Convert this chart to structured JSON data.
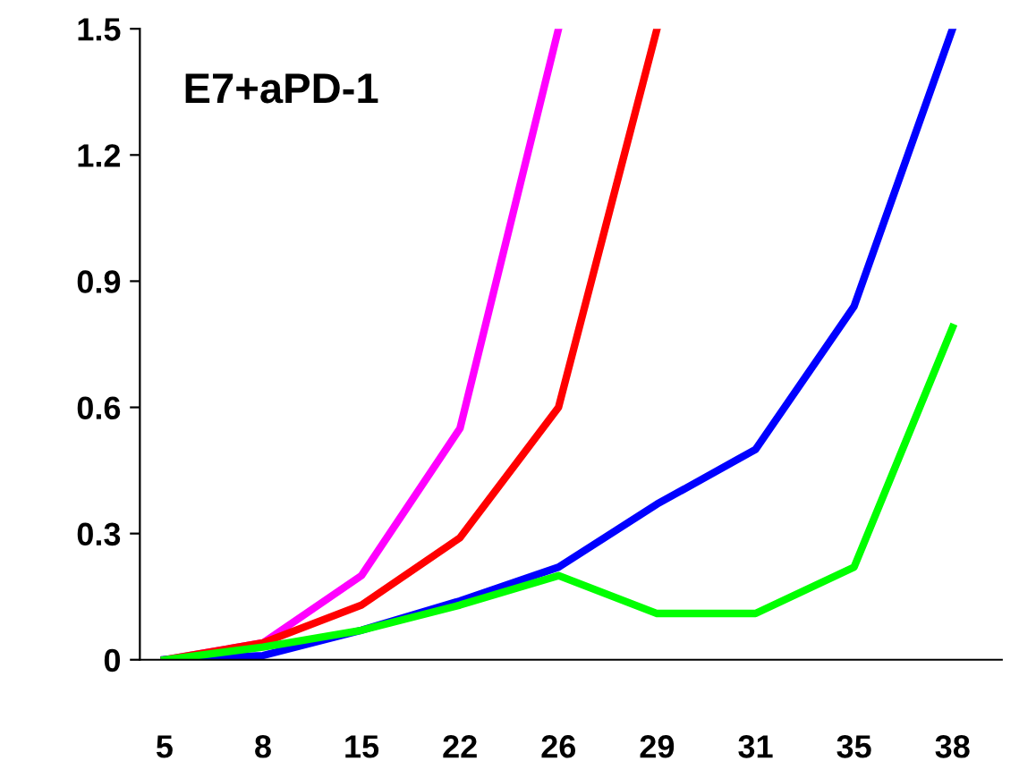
{
  "chart_data": {
    "type": "line",
    "title": "E7+aPD-1",
    "categories": [
      "5",
      "8",
      "15",
      "22",
      "26",
      "29",
      "31",
      "35",
      "38"
    ],
    "series": [
      {
        "color": "#ff00ff",
        "values": [
          0,
          0.04,
          0.2,
          0.55,
          1.5,
          null,
          null,
          null,
          null
        ]
      },
      {
        "color": "#ff0000",
        "values": [
          0,
          0.04,
          0.13,
          0.29,
          0.6,
          1.5,
          null,
          null,
          null
        ]
      },
      {
        "color": "#0000ff",
        "values": [
          0,
          0.01,
          0.07,
          0.14,
          0.22,
          0.37,
          0.5,
          0.84,
          1.5
        ]
      },
      {
        "color": "#00ff00",
        "values": [
          0,
          0.03,
          0.07,
          0.13,
          0.2,
          0.11,
          0.11,
          0.22,
          0.79
        ]
      }
    ],
    "ylim": [
      0,
      1.5
    ],
    "yticks": [
      0,
      0.3,
      0.6,
      0.9,
      1.2,
      1.5
    ],
    "grid": false,
    "legend": false,
    "marker": "none",
    "line_style": "solid"
  }
}
